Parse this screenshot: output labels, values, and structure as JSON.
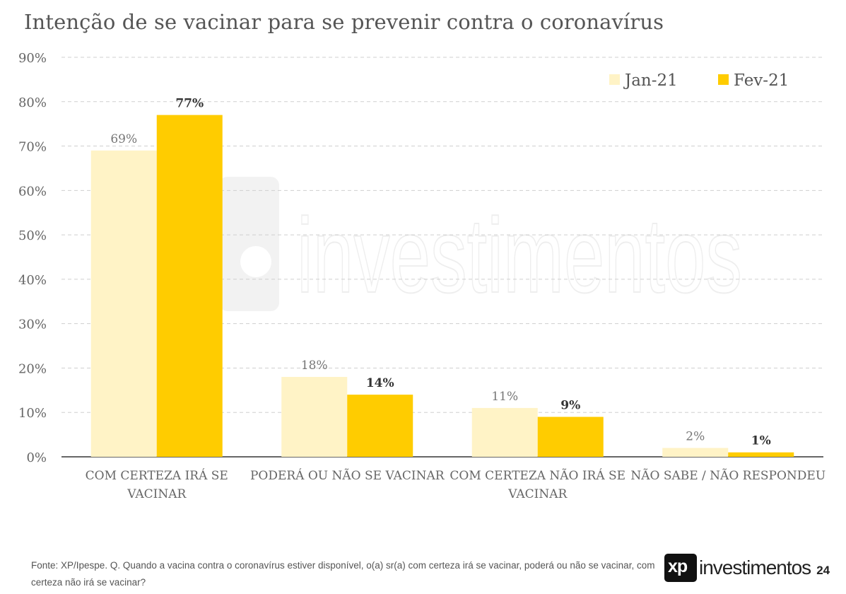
{
  "title": "Intenção de se vacinar para se prevenir contra o coronavírus",
  "footer": {
    "source": "Fonte: XP/Ipespe. Q. Quando a vacina contra o coronavírus estiver disponível, o(a) sr(a) com certeza irá se vacinar, poderá ou não se vacinar, com certeza não irá se vacinar?",
    "logo_text": "investimentos",
    "logo_mark": "xp",
    "page_number": "24"
  },
  "watermark": {
    "text": "investimentos"
  },
  "colors": {
    "jan": "#FFF3C6",
    "fev": "#FFCC00",
    "grid": "#cfcfcf",
    "axis": "#333333"
  },
  "chart_data": {
    "type": "bar",
    "categories": [
      [
        "COM CERTEZA IRÁ SE",
        "VACINAR"
      ],
      [
        "PODERÁ OU NÃO SE VACINAR"
      ],
      [
        "COM CERTEZA NÃO IRÁ SE",
        "VACINAR"
      ],
      [
        "NÃO SABE / NÃO RESPONDEU"
      ]
    ],
    "series": [
      {
        "name": "Jan-21",
        "values": [
          69,
          18,
          11,
          2
        ],
        "labels": [
          "69%",
          "18%",
          "11%",
          "2%"
        ]
      },
      {
        "name": "Fev-21",
        "values": [
          77,
          14,
          9,
          1
        ],
        "labels": [
          "77%",
          "14%",
          "9%",
          "1%"
        ]
      }
    ],
    "ylim": [
      0,
      90
    ],
    "yticks": [
      "0%",
      "10%",
      "20%",
      "30%",
      "40%",
      "50%",
      "60%",
      "70%",
      "80%",
      "90%"
    ],
    "grid": true,
    "legend_position": "top-right"
  }
}
